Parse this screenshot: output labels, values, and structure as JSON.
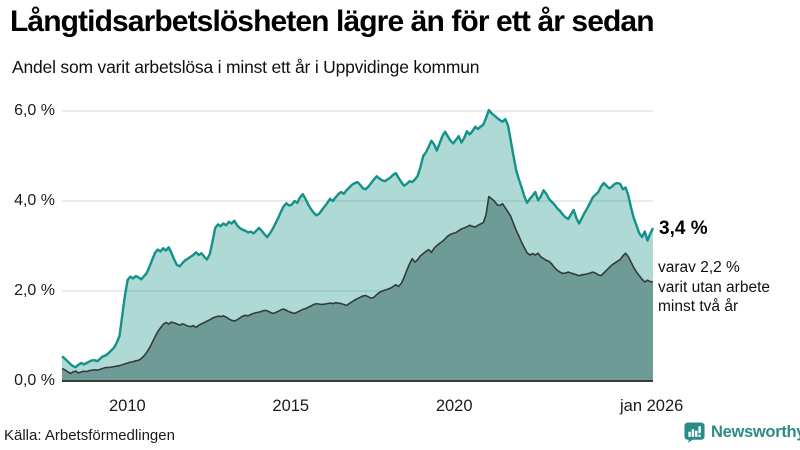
{
  "header": {
    "title": "Långtidsarbetslösheten lägre än för ett år sedan",
    "subtitle": "Andel som varit arbetslösa i minst ett år i Uppvidinge kommun"
  },
  "annotations": {
    "primary": "3,4 %",
    "secondary": [
      "varav 2,2 %",
      "varit utan arbete",
      "minst två år"
    ]
  },
  "footer": {
    "source": "Källa: Arbetsförmedlingen",
    "brand": "Newsworthy"
  },
  "colors": {
    "accent_teal": "#149189",
    "light_area_fill": "rgba(22,146,134,0.35)",
    "dark_area_fill": "#6f9b97",
    "dark_area_stroke": "#333c3a",
    "grid": "#d9dee3",
    "axis": "#3a3a3a",
    "brand_teal": "#2b8c87"
  },
  "chart_data": {
    "type": "area",
    "title": "Långtidsarbetslösheten lägre än för ett år sedan",
    "subtitle": "Andel som varit arbetslösa i minst ett år i Uppvidinge kommun",
    "unit": "%",
    "frequency": "monthly",
    "x_start_year": 2008.0,
    "x_end_year": 2026.083,
    "ylim": [
      0,
      6.3
    ],
    "grid": true,
    "y_ticks": [
      {
        "label": "0,0 %",
        "value": 0
      },
      {
        "label": "2,0 %",
        "value": 2
      },
      {
        "label": "4,0 %",
        "value": 4
      },
      {
        "label": "6,0 %",
        "value": 6
      }
    ],
    "x_ticks": [
      {
        "label": "2010",
        "year": 2010
      },
      {
        "label": "2015",
        "year": 2015
      },
      {
        "label": "2020",
        "year": 2020
      },
      {
        "label": "jan 2026",
        "year": 2026.042
      }
    ],
    "series": [
      {
        "name": "Andel arbetslösa minst ett år",
        "end_value": 3.4,
        "end_label": "3,4 %",
        "fill": "rgba(22,146,134,0.35)",
        "stroke": "#149189",
        "stroke_width": 2.4,
        "values": [
          0.55,
          0.5,
          0.44,
          0.38,
          0.33,
          0.31,
          0.36,
          0.4,
          0.37,
          0.4,
          0.43,
          0.46,
          0.46,
          0.44,
          0.5,
          0.55,
          0.57,
          0.62,
          0.68,
          0.74,
          0.85,
          1.0,
          1.45,
          1.9,
          2.25,
          2.32,
          2.28,
          2.33,
          2.3,
          2.26,
          2.33,
          2.4,
          2.55,
          2.7,
          2.85,
          2.92,
          2.88,
          2.95,
          2.9,
          2.97,
          2.85,
          2.7,
          2.58,
          2.55,
          2.62,
          2.68,
          2.72,
          2.76,
          2.8,
          2.86,
          2.8,
          2.84,
          2.76,
          2.7,
          2.82,
          3.1,
          3.4,
          3.48,
          3.44,
          3.5,
          3.46,
          3.54,
          3.5,
          3.56,
          3.46,
          3.4,
          3.36,
          3.34,
          3.3,
          3.32,
          3.28,
          3.34,
          3.4,
          3.34,
          3.26,
          3.2,
          3.28,
          3.38,
          3.5,
          3.62,
          3.76,
          3.88,
          3.95,
          3.9,
          3.92,
          4.0,
          3.96,
          4.08,
          4.15,
          4.05,
          3.92,
          3.82,
          3.74,
          3.68,
          3.72,
          3.8,
          3.88,
          3.96,
          4.05,
          4.0,
          4.08,
          4.15,
          4.2,
          4.16,
          4.24,
          4.3,
          4.36,
          4.4,
          4.42,
          4.36,
          4.28,
          4.26,
          4.32,
          4.4,
          4.48,
          4.55,
          4.5,
          4.46,
          4.44,
          4.48,
          4.52,
          4.58,
          4.62,
          4.52,
          4.42,
          4.34,
          4.38,
          4.44,
          4.42,
          4.48,
          4.56,
          4.75,
          5.0,
          5.08,
          5.2,
          5.34,
          5.26,
          5.12,
          5.28,
          5.44,
          5.54,
          5.44,
          5.34,
          5.28,
          5.36,
          5.44,
          5.3,
          5.4,
          5.55,
          5.48,
          5.55,
          5.65,
          5.6,
          5.65,
          5.7,
          5.85,
          6.02,
          5.95,
          5.9,
          5.85,
          5.8,
          5.76,
          5.82,
          5.68,
          5.35,
          5.0,
          4.68,
          4.48,
          4.3,
          4.1,
          3.96,
          4.05,
          4.12,
          4.2,
          4.02,
          4.1,
          4.24,
          4.16,
          4.05,
          3.98,
          3.92,
          3.84,
          3.78,
          3.7,
          3.64,
          3.6,
          3.7,
          3.8,
          3.62,
          3.5,
          3.62,
          3.74,
          3.84,
          3.96,
          4.08,
          4.14,
          4.2,
          4.32,
          4.4,
          4.34,
          4.28,
          4.32,
          4.38,
          4.4,
          4.38,
          4.26,
          4.3,
          4.12,
          3.85,
          3.62,
          3.45,
          3.28,
          3.2,
          3.32,
          3.12,
          3.28,
          3.4
        ]
      },
      {
        "name": "Andel arbetslösa minst två år",
        "end_value": 2.2,
        "end_label": "varav 2,2 % varit utan arbete minst två år",
        "fill": "#6f9b97",
        "stroke": "#333c3a",
        "stroke_width": 1.6,
        "values": [
          0.28,
          0.25,
          0.21,
          0.17,
          0.2,
          0.22,
          0.18,
          0.2,
          0.22,
          0.21,
          0.23,
          0.24,
          0.25,
          0.24,
          0.26,
          0.28,
          0.3,
          0.3,
          0.31,
          0.32,
          0.33,
          0.34,
          0.36,
          0.38,
          0.4,
          0.42,
          0.43,
          0.45,
          0.46,
          0.5,
          0.56,
          0.64,
          0.74,
          0.86,
          0.98,
          1.1,
          1.18,
          1.26,
          1.3,
          1.27,
          1.31,
          1.29,
          1.27,
          1.24,
          1.27,
          1.25,
          1.22,
          1.21,
          1.23,
          1.19,
          1.24,
          1.27,
          1.3,
          1.33,
          1.36,
          1.4,
          1.42,
          1.44,
          1.43,
          1.45,
          1.42,
          1.38,
          1.35,
          1.33,
          1.36,
          1.4,
          1.44,
          1.46,
          1.45,
          1.48,
          1.5,
          1.52,
          1.53,
          1.55,
          1.57,
          1.56,
          1.53,
          1.5,
          1.52,
          1.55,
          1.58,
          1.6,
          1.57,
          1.54,
          1.52,
          1.5,
          1.53,
          1.56,
          1.59,
          1.61,
          1.64,
          1.67,
          1.7,
          1.72,
          1.71,
          1.7,
          1.71,
          1.72,
          1.73,
          1.72,
          1.74,
          1.73,
          1.72,
          1.7,
          1.68,
          1.72,
          1.76,
          1.8,
          1.83,
          1.86,
          1.89,
          1.9,
          1.87,
          1.84,
          1.86,
          1.92,
          1.97,
          2.0,
          2.02,
          2.04,
          2.06,
          2.1,
          2.14,
          2.1,
          2.17,
          2.3,
          2.46,
          2.6,
          2.72,
          2.64,
          2.7,
          2.78,
          2.83,
          2.88,
          2.92,
          2.86,
          2.95,
          3.01,
          3.06,
          3.1,
          3.16,
          3.22,
          3.26,
          3.28,
          3.3,
          3.34,
          3.38,
          3.4,
          3.43,
          3.46,
          3.44,
          3.42,
          3.46,
          3.49,
          3.52,
          3.7,
          4.1,
          4.05,
          4.0,
          3.92,
          3.9,
          3.94,
          3.85,
          3.76,
          3.66,
          3.5,
          3.35,
          3.22,
          3.08,
          2.96,
          2.85,
          2.8,
          2.83,
          2.8,
          2.84,
          2.76,
          2.72,
          2.68,
          2.66,
          2.6,
          2.52,
          2.46,
          2.42,
          2.39,
          2.4,
          2.42,
          2.4,
          2.38,
          2.36,
          2.34,
          2.36,
          2.37,
          2.38,
          2.4,
          2.42,
          2.4,
          2.36,
          2.34,
          2.4,
          2.46,
          2.52,
          2.58,
          2.62,
          2.66,
          2.7,
          2.78,
          2.84,
          2.76,
          2.64,
          2.52,
          2.42,
          2.34,
          2.26,
          2.2,
          2.24,
          2.21,
          2.2
        ]
      }
    ]
  }
}
